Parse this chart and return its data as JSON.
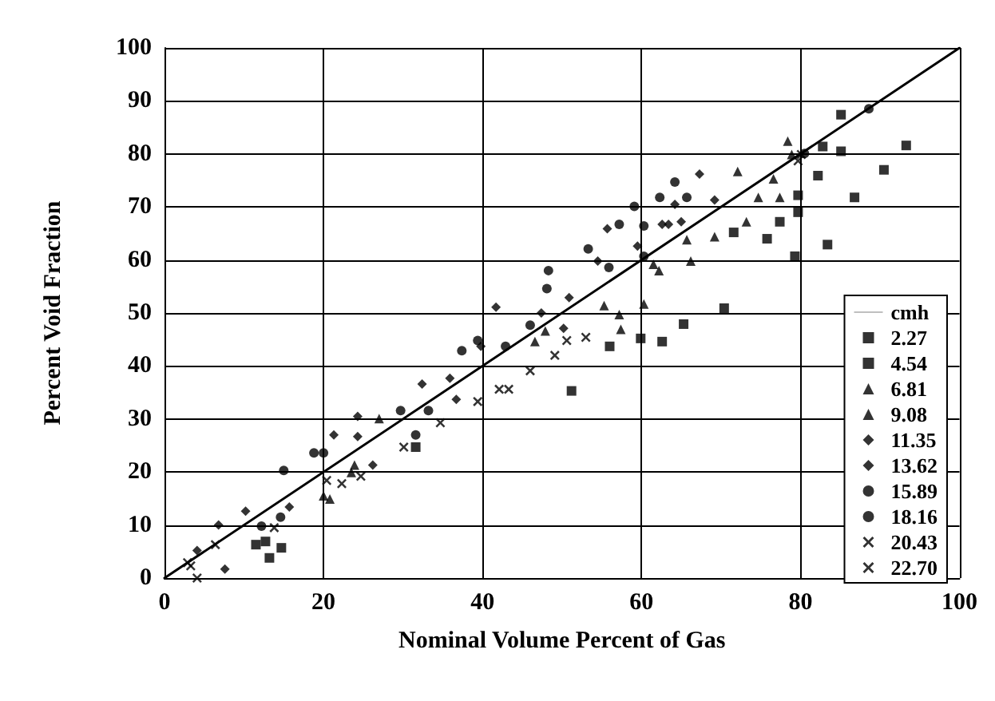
{
  "chart_data": {
    "type": "scatter",
    "xlabel": "Nominal Volume Percent of Gas",
    "ylabel": "Percent Void Fraction",
    "xlim": [
      0,
      100
    ],
    "xticks": [
      0,
      20,
      40,
      60,
      80,
      100
    ],
    "ylim": [
      0,
      100
    ],
    "yticks": [
      0,
      10,
      20,
      30,
      40,
      50,
      60,
      70,
      80,
      90,
      100
    ],
    "grid": true,
    "legend": "bottom right",
    "series": [
      {
        "name": "cmh",
        "type": "line",
        "color": "#000000",
        "marker": "none",
        "line_style": "solid",
        "x": [
          0,
          100
        ],
        "values": [
          0,
          100
        ]
      },
      {
        "name": "2.27",
        "color": "#000000",
        "marker": "square",
        "x": [
          93.3,
          90.5,
          86.8,
          83.4,
          79.3,
          70.4,
          62.6,
          51.2,
          13.2,
          14.7
        ],
        "values": [
          81.6,
          77,
          71.8,
          62.9,
          60.7,
          50.9,
          44.6,
          35.3,
          3.8,
          5.7
        ]
      },
      {
        "name": "4.54",
        "color": "#000000",
        "marker": "square",
        "x": [
          85.1,
          82.8,
          85.1,
          82.2,
          79.7,
          79.7,
          77.4,
          75.8,
          71.6,
          65.3,
          59.9,
          56,
          31.6,
          11.5,
          12.7
        ],
        "values": [
          87.4,
          81.4,
          80.5,
          75.9,
          72.2,
          69,
          67.2,
          64,
          65.2,
          47.9,
          45.2,
          43.7,
          24.7,
          6.3,
          6.9
        ]
      },
      {
        "name": "6.81",
        "color": "#000000",
        "marker": "triangle",
        "x": [
          78.4,
          72.1,
          76.6,
          73.2,
          69.2,
          66.2,
          61.5,
          60.3,
          57.2,
          55.3,
          46.6,
          27,
          23.9
        ],
        "values": [
          82.4,
          76.7,
          75.3,
          67.2,
          64.4,
          59.8,
          59.2,
          51.7,
          49.7,
          51.4,
          44.6,
          30.1,
          21.3
        ]
      },
      {
        "name": "9.08",
        "color": "#000000",
        "marker": "triangle",
        "x": [
          77.4,
          74.7,
          78.9,
          57.4,
          62.2,
          20,
          20.8,
          23.5,
          47.9,
          65.7
        ],
        "values": [
          71.8,
          71.8,
          79.9,
          46.9,
          58,
          15.5,
          14.9,
          19.9,
          46.6,
          63.8
        ]
      },
      {
        "name": "11.35",
        "color": "#000000",
        "marker": "diamond",
        "x": [
          67.3,
          64.2,
          62.6,
          55.7,
          59.5,
          54.5,
          50.9,
          46.3,
          41.7,
          35.9,
          32.4,
          24.3,
          21.3,
          10.2,
          6.8,
          15.7
        ],
        "values": [
          76.2,
          70.5,
          66.7,
          65.9,
          62.6,
          59.8,
          52.9,
          null,
          51.1,
          37.7,
          36.6,
          30.5,
          27,
          12.6,
          10,
          13.4
        ]
      },
      {
        "name": "13.62",
        "color": "#000000",
        "marker": "diamond",
        "x": [
          65,
          63.4,
          69.2,
          47.4,
          50.2,
          39.8,
          36.7,
          24.3,
          26.2,
          19.5,
          4.1,
          7.6
        ],
        "values": [
          67.2,
          66.7,
          71.3,
          50,
          47.1,
          43.7,
          33.7,
          26.7,
          21.3,
          null,
          5.2,
          1.7
        ]
      },
      {
        "name": "15.89",
        "color": "#000000",
        "marker": "circle",
        "x": [
          64.2,
          59.1,
          60.3,
          57.2,
          53.3,
          48.3,
          48.1,
          55.9,
          65.7,
          62.3,
          39.4,
          37.4,
          33.2,
          29.7,
          15,
          20,
          14.6
        ],
        "values": [
          74.7,
          70.1,
          66.4,
          66.7,
          62.1,
          58,
          54.6,
          58.6,
          71.8,
          71.8,
          44.8,
          42.9,
          31.6,
          31.6,
          20.3,
          23.6,
          11.5
        ]
      },
      {
        "name": "18.16",
        "color": "#000000",
        "marker": "circle",
        "x": [
          60.3,
          42.9,
          46,
          31.6,
          12.2,
          18.8,
          88.6,
          80.5
        ],
        "values": [
          60.7,
          43.7,
          47.7,
          27,
          9.8,
          23.6,
          88.5,
          80.1
        ]
      },
      {
        "name": "20.43",
        "color": "#000000",
        "marker": "cross",
        "x": [
          79.7,
          50.6,
          53,
          42.1,
          39.4,
          34.7,
          30.1,
          20.4,
          13.8,
          2.9
        ],
        "values": [
          78.7,
          44.8,
          45.4,
          35.6,
          33.3,
          29.3,
          24.7,
          18.4,
          9.5,
          2.9
        ]
      },
      {
        "name": "22.70",
        "color": "#000000",
        "marker": "cross",
        "x": [
          80.1,
          46,
          49.1,
          43.3,
          22.3,
          24.7,
          6.4,
          4.1,
          3.3
        ],
        "values": [
          79.9,
          39.1,
          42,
          35.6,
          17.8,
          19.2,
          6.3,
          0,
          2.3
        ]
      }
    ]
  }
}
